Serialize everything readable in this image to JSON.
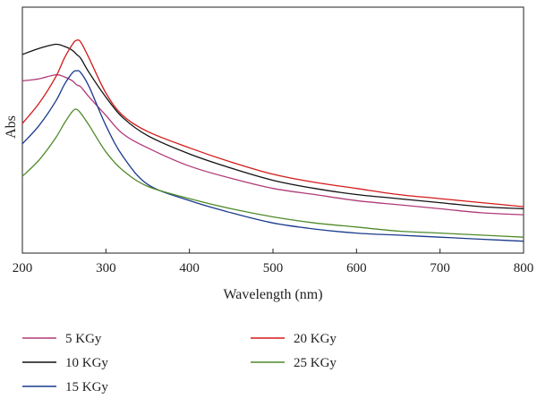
{
  "chart_data": {
    "type": "line",
    "xlabel": "Wavelength (nm)",
    "ylabel": "Abs",
    "xlim": [
      200,
      800
    ],
    "ylim": [
      0,
      1
    ],
    "xticks": [
      200,
      300,
      400,
      500,
      600,
      700,
      800
    ],
    "grid": false,
    "legend_position": "bottom",
    "x": [
      200,
      220,
      240,
      250,
      260,
      265,
      270,
      280,
      300,
      320,
      350,
      400,
      450,
      500,
      550,
      600,
      650,
      700,
      750,
      800
    ],
    "series": [
      {
        "name": "5 KGy",
        "color": "#b03a78",
        "values": [
          0.8,
          0.81,
          0.83,
          0.82,
          0.8,
          0.78,
          0.77,
          0.72,
          0.63,
          0.54,
          0.47,
          0.38,
          0.32,
          0.27,
          0.24,
          0.21,
          0.19,
          0.17,
          0.15,
          0.14
        ]
      },
      {
        "name": "10 KGy",
        "color": "#111111",
        "values": [
          0.93,
          0.96,
          0.98,
          0.97,
          0.95,
          0.93,
          0.91,
          0.84,
          0.72,
          0.62,
          0.53,
          0.44,
          0.37,
          0.31,
          0.27,
          0.24,
          0.22,
          0.2,
          0.18,
          0.17
        ]
      },
      {
        "name": "15 KGy",
        "color": "#1a3a8c",
        "values": [
          0.49,
          0.58,
          0.7,
          0.78,
          0.84,
          0.85,
          0.84,
          0.77,
          0.58,
          0.43,
          0.29,
          0.21,
          0.15,
          0.1,
          0.07,
          0.05,
          0.04,
          0.03,
          0.02,
          0.01
        ]
      },
      {
        "name": "20 KGy",
        "color": "#d41a1a",
        "values": [
          0.59,
          0.69,
          0.82,
          0.91,
          0.98,
          1.0,
          0.99,
          0.91,
          0.74,
          0.63,
          0.55,
          0.47,
          0.4,
          0.34,
          0.3,
          0.27,
          0.24,
          0.22,
          0.2,
          0.18
        ]
      },
      {
        "name": "25 KGy",
        "color": "#4f8a2a",
        "values": [
          0.33,
          0.41,
          0.52,
          0.59,
          0.65,
          0.66,
          0.64,
          0.58,
          0.45,
          0.36,
          0.28,
          0.22,
          0.17,
          0.13,
          0.1,
          0.08,
          0.06,
          0.05,
          0.04,
          0.03
        ]
      }
    ]
  }
}
